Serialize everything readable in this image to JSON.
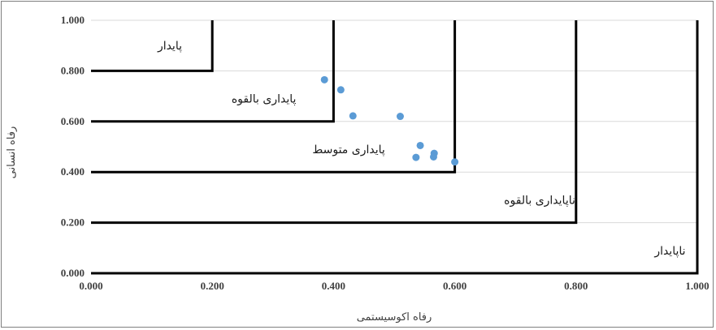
{
  "chart_data": {
    "type": "scatter",
    "xlabel": "رفاه اکوسیستمی",
    "ylabel": "رفاه انسانی",
    "xlim": [
      0,
      1
    ],
    "ylim": [
      0,
      1
    ],
    "x_ticks": [
      "0.000",
      "0.200",
      "0.400",
      "0.600",
      "0.800",
      "1.000"
    ],
    "y_ticks": [
      "0.000",
      "0.200",
      "0.400",
      "0.600",
      "0.800",
      "1.000"
    ],
    "grid": true,
    "points": [
      {
        "x": 0.385,
        "y": 0.765
      },
      {
        "x": 0.412,
        "y": 0.725
      },
      {
        "x": 0.432,
        "y": 0.622
      },
      {
        "x": 0.51,
        "y": 0.62
      },
      {
        "x": 0.543,
        "y": 0.505
      },
      {
        "x": 0.536,
        "y": 0.458
      },
      {
        "x": 0.566,
        "y": 0.474
      },
      {
        "x": 0.565,
        "y": 0.46
      },
      {
        "x": 0.6,
        "y": 0.44
      }
    ],
    "point_color": "#5b9bd5",
    "zone_boundaries": [
      {
        "x": 0.2,
        "y": 0.8
      },
      {
        "x": 0.4,
        "y": 0.6
      },
      {
        "x": 0.6,
        "y": 0.4
      },
      {
        "x": 0.8,
        "y": 0.2
      },
      {
        "x": 1.0,
        "y": 0.0
      }
    ],
    "zone_labels": [
      {
        "text": "پایدار",
        "x": 0.13,
        "y": 0.9
      },
      {
        "text": "پایداری بالقوه",
        "x": 0.285,
        "y": 0.69
      },
      {
        "text": "پایداری متوسط",
        "x": 0.425,
        "y": 0.49
      },
      {
        "text": "ناپایداری بالقوه",
        "x": 0.74,
        "y": 0.29
      },
      {
        "text": "ناپایدار",
        "x": 0.955,
        "y": 0.09
      }
    ]
  }
}
